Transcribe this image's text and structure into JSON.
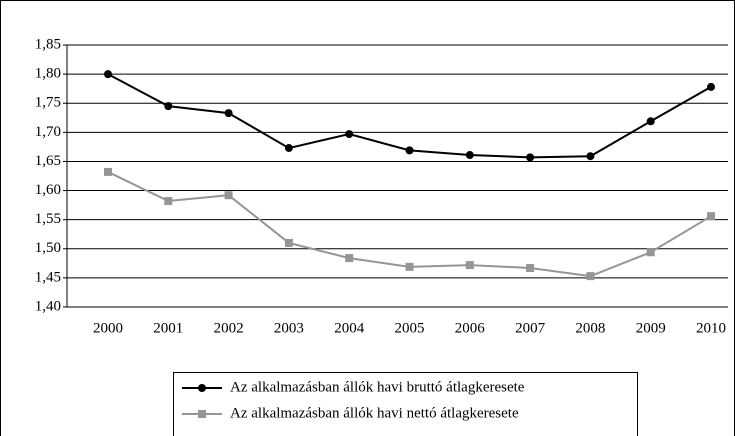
{
  "chart_data": {
    "type": "line",
    "categories": [
      "2000",
      "2001",
      "2002",
      "2003",
      "2004",
      "2005",
      "2006",
      "2007",
      "2008",
      "2009",
      "2010"
    ],
    "series": [
      {
        "name": "Az alkalmazásban állók havi bruttó átlagkeresete",
        "color": "#000000",
        "marker": "circle",
        "values": [
          1.8,
          1.745,
          1.733,
          1.673,
          1.697,
          1.669,
          1.661,
          1.657,
          1.659,
          1.719,
          1.778
        ]
      },
      {
        "name": "Az alkalmazásban állók havi nettó átlagkeresete",
        "color": "#959595",
        "marker": "square",
        "values": [
          1.632,
          1.582,
          1.592,
          1.51,
          1.484,
          1.469,
          1.472,
          1.467,
          1.453,
          1.494,
          1.556
        ]
      }
    ],
    "ylim": [
      1.4,
      1.85
    ],
    "yticks": [
      {
        "value": 1.4,
        "label": "1,40"
      },
      {
        "value": 1.45,
        "label": "1,45"
      },
      {
        "value": 1.5,
        "label": "1,50"
      },
      {
        "value": 1.55,
        "label": "1,55"
      },
      {
        "value": 1.6,
        "label": "1,60"
      },
      {
        "value": 1.65,
        "label": "1,65"
      },
      {
        "value": 1.7,
        "label": "1,70"
      },
      {
        "value": 1.75,
        "label": "1,75"
      },
      {
        "value": 1.8,
        "label": "1,80"
      },
      {
        "value": 1.85,
        "label": "1,85"
      }
    ],
    "grid": true,
    "legend": "bottom"
  }
}
